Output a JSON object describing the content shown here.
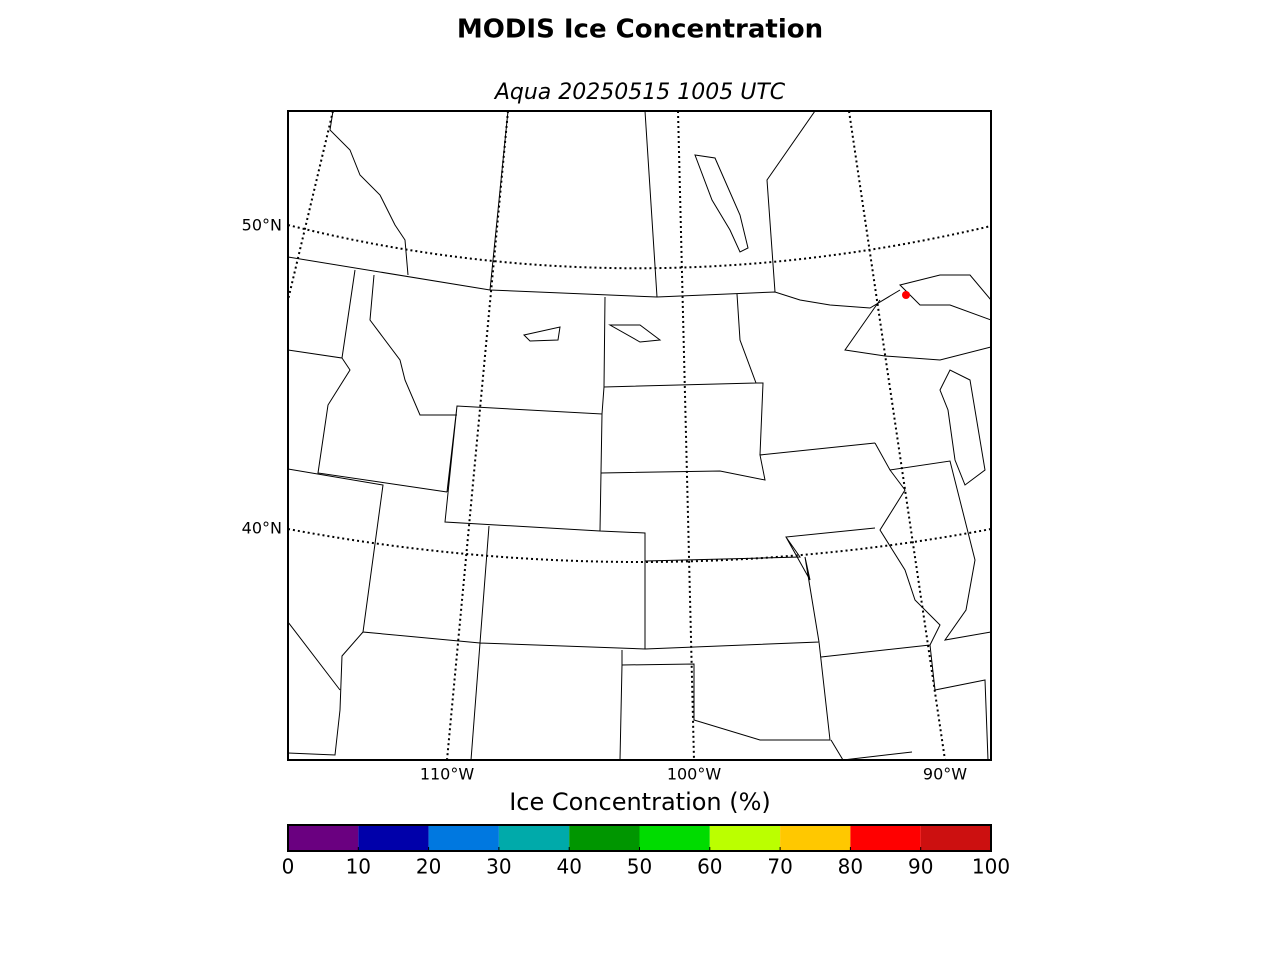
{
  "title": "MODIS Ice Concentration",
  "subtitle": "Aqua 20250515 1005 UTC",
  "map": {
    "lat_labels": [
      "50°N",
      "40°N"
    ],
    "lon_labels": [
      "110°W",
      "100°W",
      "90°W"
    ]
  },
  "colorbar": {
    "label": "Ice Concentration (%)",
    "lim": [
      0,
      100
    ],
    "ticks": [
      0,
      10,
      20,
      30,
      40,
      50,
      60,
      70,
      80,
      90,
      100
    ],
    "colors": [
      "#6a0080",
      "#0000aa",
      "#0078e0",
      "#00aaaa",
      "#009600",
      "#00dc00",
      "#bbff00",
      "#ffc800",
      "#ff0000",
      "#cc1010"
    ]
  }
}
